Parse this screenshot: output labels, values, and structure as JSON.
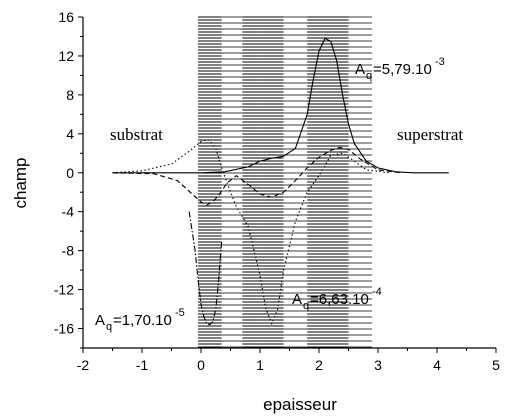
{
  "chart_data": {
    "type": "line",
    "xlabel": "epaisseur",
    "ylabel": "champ",
    "xlim": [
      -2,
      5
    ],
    "ylim": [
      -18,
      16
    ],
    "xticks": [
      "-2",
      "-1",
      "0",
      "1",
      "2",
      "3",
      "4",
      "5"
    ],
    "yticks": [
      "-16",
      "-12",
      "-8",
      "-4",
      "0",
      "4",
      "8",
      "12",
      "16"
    ],
    "regions": [
      {
        "label": "substrat"
      },
      {
        "label": "superstrat"
      }
    ],
    "layers": [
      {
        "x0": -0.05,
        "x1": 0.35,
        "style": "dense"
      },
      {
        "x0": 0.35,
        "x1": 0.7,
        "style": "sparse"
      },
      {
        "x0": 0.7,
        "x1": 1.05,
        "style": "dense"
      },
      {
        "x0": 1.05,
        "x1": 1.4,
        "style": "dense"
      },
      {
        "x0": 1.4,
        "x1": 1.8,
        "style": "sparse"
      },
      {
        "x0": 1.8,
        "x1": 2.5,
        "style": "dense"
      },
      {
        "x0": 2.5,
        "x1": 2.9,
        "style": "sparse"
      }
    ],
    "annotations": [
      {
        "base": "A",
        "sub": "q",
        "value": "=5,79.10",
        "exp": "-3"
      },
      {
        "base": "A",
        "sub": "q",
        "value": "=6,63.10",
        "exp": "-4"
      },
      {
        "base": "A",
        "sub": "q",
        "value": "=1,70.10",
        "exp": "-5"
      }
    ],
    "series": [
      {
        "style": "solid",
        "x": [
          -1.5,
          -0.5,
          0,
          0.4,
          0.8,
          1.0,
          1.2,
          1.4,
          1.6,
          1.8,
          1.9,
          2.0,
          2.1,
          2.2,
          2.3,
          2.4,
          2.5,
          2.6,
          2.8,
          3.0,
          3.3,
          3.6,
          4.2
        ],
        "y": [
          0,
          0,
          0,
          0.1,
          0.6,
          1.2,
          1.5,
          1.7,
          2.5,
          6.0,
          9.5,
          12.5,
          13.8,
          13.5,
          11.5,
          8.0,
          5.0,
          3.0,
          1.2,
          0.5,
          0.1,
          0,
          0
        ]
      },
      {
        "style": "dashed",
        "x": [
          -1.5,
          -0.8,
          -0.4,
          0,
          0.1,
          0.2,
          0.3,
          0.45,
          0.6,
          0.8,
          1.0,
          1.2,
          1.4,
          1.6,
          1.8,
          2.0,
          2.2,
          2.35,
          2.5,
          2.7,
          3.0,
          3.4
        ],
        "y": [
          0,
          -0.1,
          -0.8,
          -3.0,
          -3.3,
          -3.0,
          -2.3,
          -1.0,
          -0.3,
          -1.2,
          -2.2,
          -2.5,
          -2.0,
          -0.8,
          0.5,
          1.6,
          2.3,
          2.6,
          2.4,
          1.4,
          0.3,
          0
        ]
      },
      {
        "style": "dotted",
        "x": [
          -1.5,
          -1.0,
          -0.5,
          -0.2,
          0,
          0.1,
          0.15,
          0.25,
          0.35,
          0.45,
          0.6,
          0.8,
          1.0,
          1.1,
          1.2,
          1.3,
          1.4,
          1.6,
          1.8,
          2.0,
          2.2,
          2.4,
          2.6,
          2.8,
          3.2
        ],
        "y": [
          0,
          0.2,
          0.9,
          2.2,
          3.2,
          3.4,
          3.3,
          2.5,
          0.5,
          -1.2,
          -3.5,
          -5.5,
          -10.5,
          -14.0,
          -15.5,
          -14.0,
          -10.0,
          -5.0,
          -2.0,
          -0.3,
          1.8,
          2.0,
          1.2,
          0.3,
          0
        ]
      },
      {
        "style": "dash-dot",
        "x": [
          -0.2,
          -0.1,
          -0.05,
          0.0,
          0.05,
          0.1,
          0.15,
          0.2,
          0.25,
          0.3,
          0.35
        ],
        "y": [
          -4.0,
          -8.0,
          -11.0,
          -13.5,
          -14.8,
          -15.5,
          -15.6,
          -15.3,
          -14.0,
          -11.0,
          -7.0
        ]
      }
    ]
  }
}
